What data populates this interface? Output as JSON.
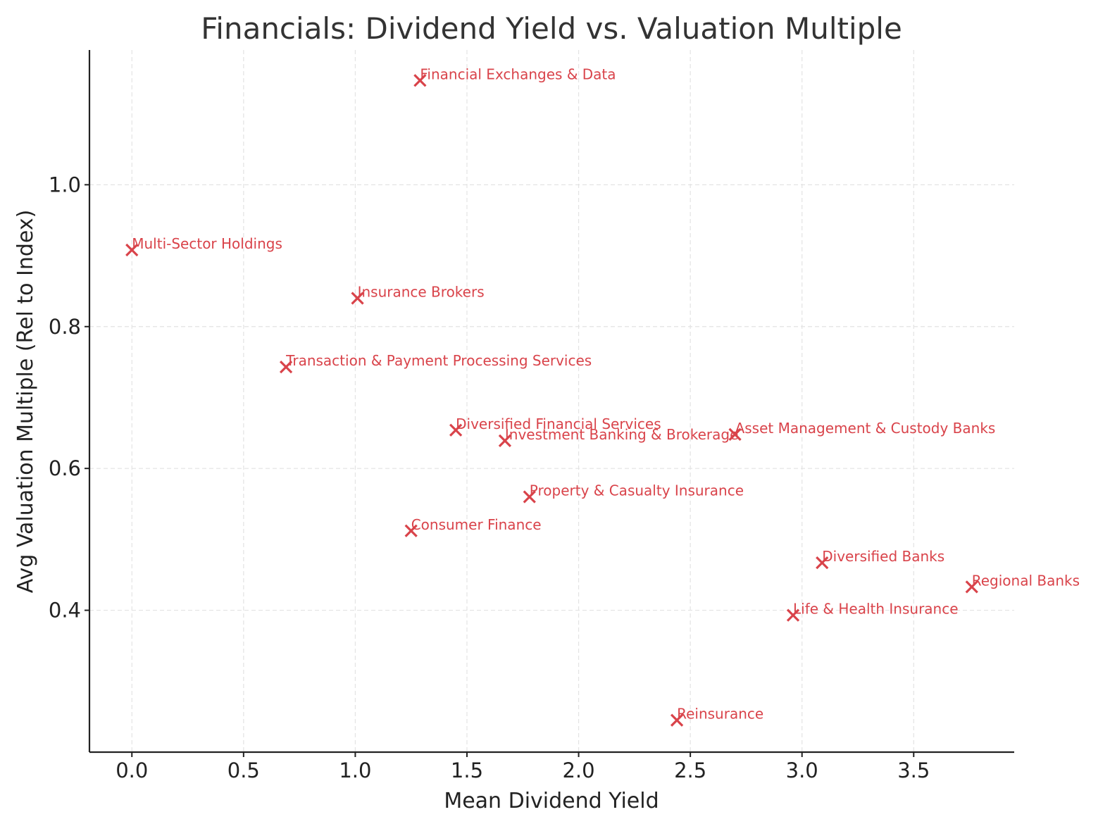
{
  "chart_data": {
    "type": "scatter",
    "title": "Financials: Dividend Yield vs. Valuation Multiple",
    "xlabel": "Mean Dividend Yield",
    "ylabel": "Avg Valuation Multiple (Rel to Index)",
    "xlim": [
      -0.19,
      3.95
    ],
    "ylim": [
      0.2,
      1.19
    ],
    "xticks": [
      0.0,
      0.5,
      1.0,
      1.5,
      2.0,
      2.5,
      3.0,
      3.5
    ],
    "xtick_labels": [
      "0.0",
      "0.5",
      "1.0",
      "1.5",
      "2.0",
      "2.5",
      "3.0",
      "3.5"
    ],
    "yticks": [
      0.4,
      0.6,
      0.8,
      1.0
    ],
    "ytick_labels": [
      "0.4",
      "0.6",
      "0.8",
      "1.0"
    ],
    "grid": true,
    "marker": "x",
    "color": "#d9434a",
    "points": [
      {
        "label": "Financial Exchanges & Data",
        "x": 1.29,
        "y": 1.147
      },
      {
        "label": "Multi-Sector Holdings",
        "x": 0.0,
        "y": 0.908
      },
      {
        "label": "Insurance Brokers",
        "x": 1.01,
        "y": 0.84
      },
      {
        "label": "Transaction & Payment Processing Services",
        "x": 0.69,
        "y": 0.743
      },
      {
        "label": "Diversified Financial Services",
        "x": 1.45,
        "y": 0.654
      },
      {
        "label": "Investment Banking & Brokerage",
        "x": 1.67,
        "y": 0.639
      },
      {
        "label": "Asset Management & Custody Banks",
        "x": 2.7,
        "y": 0.648
      },
      {
        "label": "Property & Casualty Insurance",
        "x": 1.78,
        "y": 0.56
      },
      {
        "label": "Consumer Finance",
        "x": 1.25,
        "y": 0.512
      },
      {
        "label": "Diversified Banks",
        "x": 3.09,
        "y": 0.467
      },
      {
        "label": "Regional Banks",
        "x": 3.76,
        "y": 0.433
      },
      {
        "label": "Life & Health Insurance",
        "x": 2.96,
        "y": 0.393
      },
      {
        "label": "Reinsurance",
        "x": 2.44,
        "y": 0.245
      }
    ]
  }
}
